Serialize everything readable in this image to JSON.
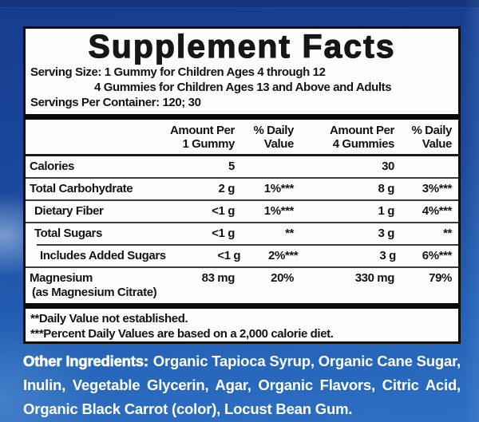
{
  "background": {
    "top_color": "#163c8d",
    "bottom_color": "#2e6fc4"
  },
  "panel": {
    "title": "Supplement Facts",
    "serving_size_line1": "Serving Size: 1 Gummy for Children Ages 4 through 12",
    "serving_size_line2": "4 Gummies for Children Ages 13 and Above and Adults",
    "servings_per_container": "Servings Per Container: 120; 30",
    "table": {
      "headers": {
        "amount_1": "Amount Per\n1 Gummy",
        "dv_1": "% Daily\nValue",
        "amount_4": "Amount Per\n4 Gummies",
        "dv_4": "% Daily\nValue"
      },
      "rows": [
        {
          "name": "Calories",
          "amt1": "5",
          "dv1": "",
          "amt2": "30",
          "dv2": ""
        },
        {
          "name": "Total Carbohydrate",
          "amt1": "2 g",
          "dv1": "1%***",
          "amt2": "8 g",
          "dv2": "3%***"
        },
        {
          "name": "Dietary Fiber",
          "amt1": "<1 g",
          "dv1": "1%***",
          "amt2": "1 g",
          "dv2": "4%***"
        },
        {
          "name": "Total Sugars",
          "amt1": "<1 g",
          "dv1": "**",
          "amt2": "3 g",
          "dv2": "**"
        },
        {
          "name": "Includes Added Sugars",
          "amt1": "<1 g",
          "dv1": "2%***",
          "amt2": "3 g",
          "dv2": "6%***"
        },
        {
          "name": "Magnesium",
          "name_sub": "(as Magnesium Citrate)",
          "amt1": "83 mg",
          "dv1": "20%",
          "amt2": "330 mg",
          "dv2": "79%"
        }
      ]
    },
    "footnotes": [
      "**Daily Value not established.",
      "***Percent Daily Values are based on a 2,000 calorie diet."
    ]
  },
  "other_ingredients": {
    "label": "Other Ingredients:",
    "line1_rest": "Organic Tapioca Syrup, Organic Cane Sugar,",
    "line2": "Inulin, Vegetable Glycerin, Agar, Organic Flavors, Citric Acid,",
    "line3": "Organic Black Carrot (color), Locust Bean Gum."
  }
}
